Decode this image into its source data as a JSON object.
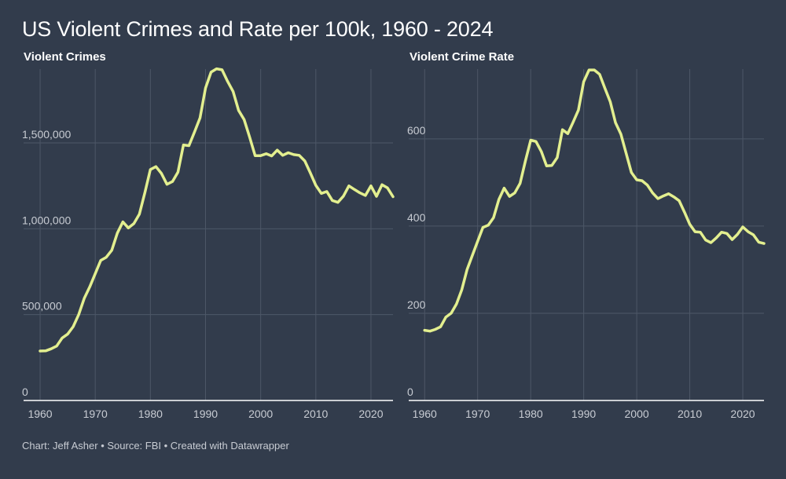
{
  "title": "US Violent Crimes and Rate per 100k, 1960 - 2024",
  "footer": "Chart: Jeff Asher • Source: FBI • Created with Datawrapper",
  "colors": {
    "background": "#323c4c",
    "line": "#e3ef8f",
    "grid": "#4d5767",
    "text": "#c8ccd3"
  },
  "chart_data": [
    {
      "type": "line",
      "title": "Violent Crimes",
      "xlabel": "",
      "ylabel": "",
      "xlim": [
        1957,
        2024
      ],
      "ylim": [
        0,
        1930000
      ],
      "x_ticks": [
        1960,
        1970,
        1980,
        1990,
        2000,
        2010,
        2020
      ],
      "y_ticks": [
        0,
        500000,
        1000000,
        1500000
      ],
      "y_tick_labels": [
        "0",
        "500,000",
        "1,000,000",
        "1,500,000"
      ],
      "grid": true,
      "x": [
        1960,
        1961,
        1962,
        1963,
        1964,
        1965,
        1966,
        1967,
        1968,
        1969,
        1970,
        1971,
        1972,
        1973,
        1974,
        1975,
        1976,
        1977,
        1978,
        1979,
        1980,
        1981,
        1982,
        1983,
        1984,
        1985,
        1986,
        1987,
        1988,
        1989,
        1990,
        1991,
        1992,
        1993,
        1994,
        1995,
        1996,
        1997,
        1998,
        1999,
        2000,
        2001,
        2002,
        2003,
        2004,
        2005,
        2006,
        2007,
        2008,
        2009,
        2010,
        2011,
        2012,
        2013,
        2014,
        2015,
        2016,
        2017,
        2018,
        2019,
        2020,
        2021,
        2022,
        2023,
        2024
      ],
      "values": [
        288000,
        289000,
        301000,
        317000,
        364000,
        387000,
        430000,
        500000,
        595000,
        662000,
        739000,
        816000,
        834000,
        875000,
        975000,
        1040000,
        1005000,
        1030000,
        1085000,
        1210000,
        1345000,
        1362000,
        1322000,
        1259000,
        1275000,
        1330000,
        1488000,
        1484000,
        1564000,
        1646000,
        1820000,
        1912000,
        1932000,
        1926000,
        1858000,
        1799000,
        1689000,
        1636000,
        1534000,
        1426000,
        1426000,
        1437000,
        1424000,
        1458000,
        1428000,
        1443000,
        1432000,
        1428000,
        1395000,
        1326000,
        1253000,
        1206000,
        1217000,
        1165000,
        1154000,
        1190000,
        1250000,
        1229000,
        1209000,
        1194000,
        1250000,
        1189000,
        1257000,
        1238000,
        1187000
      ]
    },
    {
      "type": "line",
      "title": "Violent Crime Rate",
      "xlabel": "",
      "ylabel": "",
      "xlim": [
        1957,
        2024
      ],
      "ylim": [
        0,
        760
      ],
      "x_ticks": [
        1960,
        1970,
        1980,
        1990,
        2000,
        2010,
        2020
      ],
      "y_ticks": [
        0,
        200,
        400,
        600
      ],
      "y_tick_labels": [
        "0",
        "200",
        "400",
        "600"
      ],
      "grid": true,
      "x": [
        1960,
        1961,
        1962,
        1963,
        1964,
        1965,
        1966,
        1967,
        1968,
        1969,
        1970,
        1971,
        1972,
        1973,
        1974,
        1975,
        1976,
        1977,
        1978,
        1979,
        1980,
        1981,
        1982,
        1983,
        1984,
        1985,
        1986,
        1987,
        1988,
        1989,
        1990,
        1991,
        1992,
        1993,
        1994,
        1995,
        1996,
        1997,
        1998,
        1999,
        2000,
        2001,
        2002,
        2003,
        2004,
        2005,
        2006,
        2007,
        2008,
        2009,
        2010,
        2011,
        2012,
        2013,
        2014,
        2015,
        2016,
        2017,
        2018,
        2019,
        2020,
        2021,
        2022,
        2023,
        2024
      ],
      "values": [
        161,
        159,
        163,
        169,
        191,
        200,
        221,
        254,
        300,
        333,
        365,
        397,
        402,
        419,
        461,
        487,
        468,
        476,
        498,
        549,
        597,
        594,
        571,
        538,
        539,
        557,
        621,
        612,
        638,
        666,
        731,
        758,
        758,
        748,
        716,
        685,
        637,
        611,
        567,
        523,
        506,
        504,
        494,
        476,
        463,
        469,
        474,
        467,
        458,
        432,
        404,
        387,
        386,
        368,
        362,
        373,
        386,
        383,
        369,
        381,
        398,
        387,
        380,
        363,
        360
      ]
    }
  ]
}
